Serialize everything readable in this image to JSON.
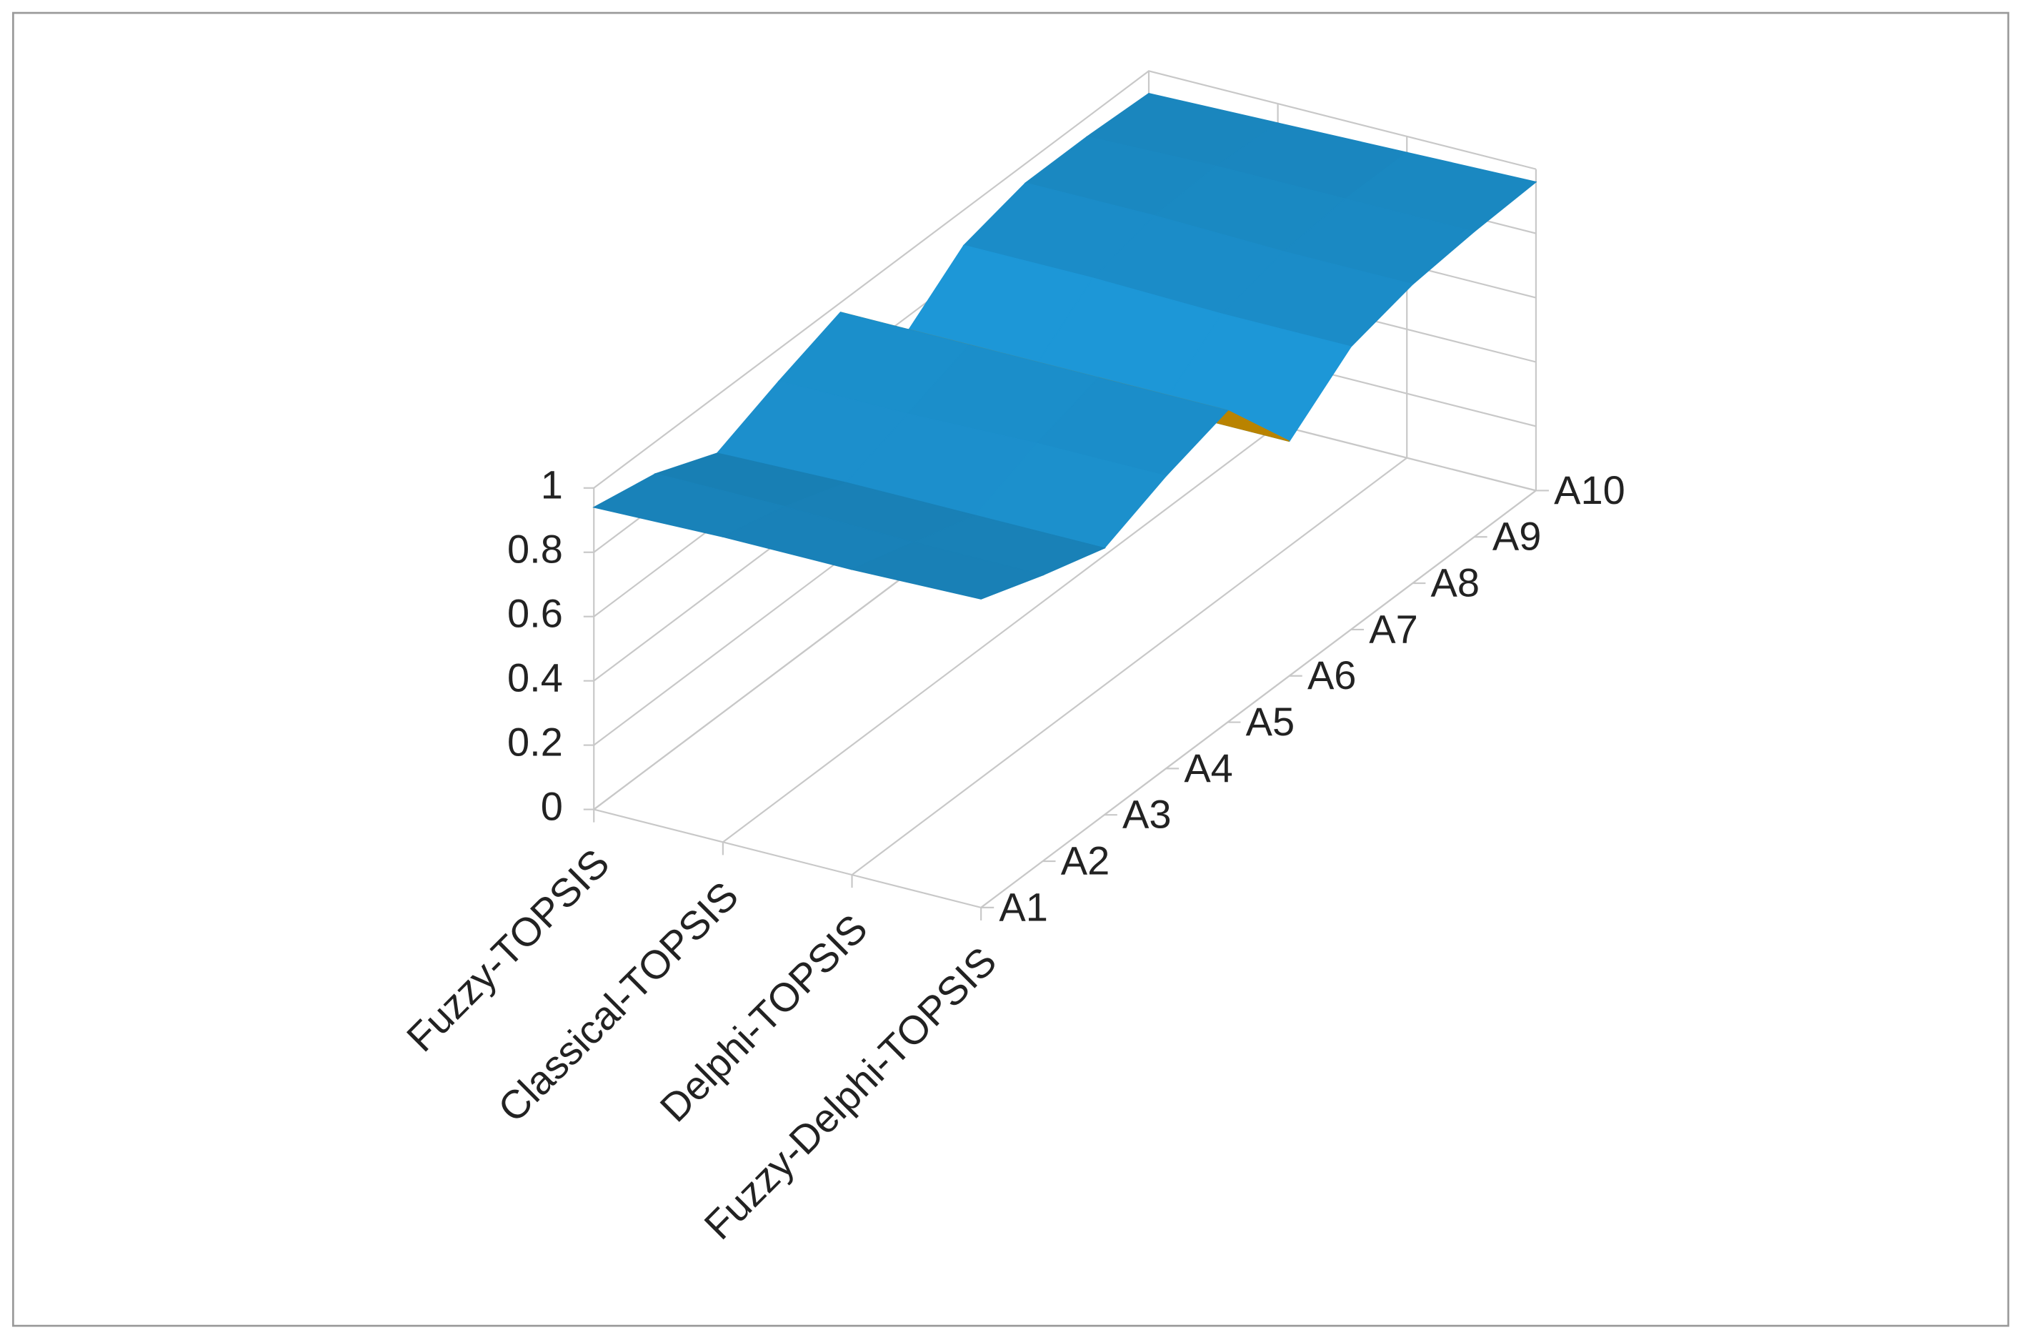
{
  "chart_data": {
    "type": "surface",
    "categories": [
      "Fuzzy-TOPSIS",
      "Classical-TOPSIS",
      "Delphi-TOPSIS",
      "Fuzzy-Delphi-TOPSIS"
    ],
    "series": [
      {
        "name": "A1",
        "color": "#1a87c0",
        "values": [
          0.94,
          0.95,
          0.95,
          0.96
        ]
      },
      {
        "name": "A2",
        "color": "#1a87c0",
        "values": [
          0.9,
          0.9,
          0.89,
          0.89
        ]
      },
      {
        "name": "A3",
        "color": "#1a87c0",
        "values": [
          0.82,
          0.83,
          0.83,
          0.83
        ]
      },
      {
        "name": "A4",
        "color": "#1a87c0",
        "values": [
          0.9,
          0.9,
          0.91,
          0.91
        ]
      },
      {
        "name": "A5",
        "color": "#e2a000",
        "values": [
          0.97,
          0.97,
          0.97,
          0.97
        ]
      },
      {
        "name": "A6",
        "color": "#1a87c0",
        "values": [
          0.74,
          0.74,
          0.73,
          0.73
        ]
      },
      {
        "name": "A7",
        "color": "#1a87c0",
        "values": [
          0.89,
          0.89,
          0.88,
          0.88
        ]
      },
      {
        "name": "A8",
        "color": "#1a87c0",
        "values": [
          0.94,
          0.94,
          0.93,
          0.93
        ]
      },
      {
        "name": "A9",
        "color": "#1a87c0",
        "values": [
          0.94,
          0.95,
          0.95,
          0.95
        ]
      },
      {
        "name": "A10",
        "color": "#1a87c0",
        "values": [
          0.93,
          0.94,
          0.95,
          0.96
        ]
      }
    ],
    "zlim": [
      0,
      1
    ],
    "zticks": [
      0,
      0.2,
      0.4,
      0.6,
      0.8,
      1
    ],
    "grid": true
  }
}
